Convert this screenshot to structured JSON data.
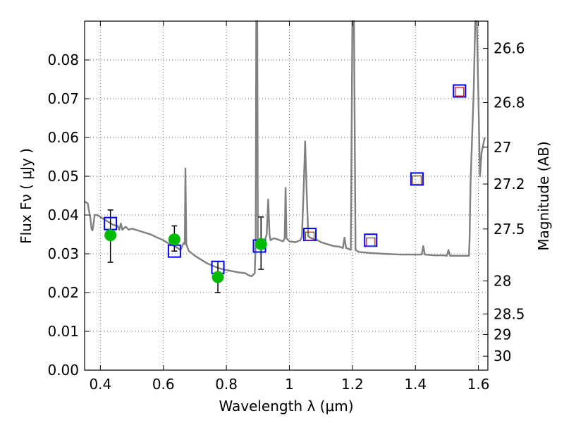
{
  "chart_data": {
    "type": "scatter",
    "xlabel": "Wavelength  λ (μm)",
    "ylabel": "Flux  Fν  ( μJy )",
    "ylabel_right": "Magnitude (AB)",
    "xlim": [
      0.35,
      1.63
    ],
    "ylim": [
      0.0,
      0.09
    ],
    "grid": true,
    "x_ticks": [
      0.4,
      0.6,
      0.8,
      1.0,
      1.2,
      1.4,
      1.6
    ],
    "x_tick_labels": [
      "0.4",
      "0.6",
      "0.8",
      "1",
      "1.2",
      "1.4",
      "1.6"
    ],
    "y_ticks": [
      0.0,
      0.01,
      0.02,
      0.03,
      0.04,
      0.05,
      0.06,
      0.07,
      0.08
    ],
    "y_tick_labels": [
      "0.00",
      "0.01",
      "0.02",
      "0.03",
      "0.04",
      "0.05",
      "0.06",
      "0.07",
      "0.08"
    ],
    "right_ticks": [
      {
        "label": "26.6",
        "flux": 0.083
      },
      {
        "label": "26.8",
        "flux": 0.069
      },
      {
        "label": "27",
        "flux": 0.0575
      },
      {
        "label": "27.2",
        "flux": 0.048
      },
      {
        "label": "27.5",
        "flux": 0.0364
      },
      {
        "label": "28",
        "flux": 0.023
      },
      {
        "label": "28.5",
        "flux": 0.0145
      },
      {
        "label": "29",
        "flux": 0.0092
      },
      {
        "label": "30",
        "flux": 0.0036
      }
    ],
    "series": [
      {
        "kind": "model-spectrum",
        "color": "#808080",
        "points": [
          [
            0.35,
            0.0435
          ],
          [
            0.36,
            0.043
          ],
          [
            0.363,
            0.0415
          ],
          [
            0.368,
            0.0395
          ],
          [
            0.372,
            0.0365
          ],
          [
            0.375,
            0.036
          ],
          [
            0.378,
            0.0375
          ],
          [
            0.382,
            0.04
          ],
          [
            0.39,
            0.04
          ],
          [
            0.4,
            0.0395
          ],
          [
            0.41,
            0.039
          ],
          [
            0.42,
            0.0385
          ],
          [
            0.43,
            0.038
          ],
          [
            0.44,
            0.0375
          ],
          [
            0.455,
            0.0372
          ],
          [
            0.46,
            0.0362
          ],
          [
            0.465,
            0.0378
          ],
          [
            0.47,
            0.0362
          ],
          [
            0.48,
            0.037
          ],
          [
            0.49,
            0.0362
          ],
          [
            0.5,
            0.0365
          ],
          [
            0.52,
            0.036
          ],
          [
            0.54,
            0.0355
          ],
          [
            0.56,
            0.035
          ],
          [
            0.58,
            0.0342
          ],
          [
            0.6,
            0.0335
          ],
          [
            0.62,
            0.0325
          ],
          [
            0.64,
            0.0318
          ],
          [
            0.65,
            0.0312
          ],
          [
            0.656,
            0.0312
          ],
          [
            0.66,
            0.032
          ],
          [
            0.664,
            0.0328
          ],
          [
            0.668,
            0.0325
          ],
          [
            0.67,
            0.052
          ],
          [
            0.673,
            0.0325
          ],
          [
            0.68,
            0.0308
          ],
          [
            0.7,
            0.0295
          ],
          [
            0.72,
            0.0285
          ],
          [
            0.74,
            0.0275
          ],
          [
            0.76,
            0.0268
          ],
          [
            0.78,
            0.0262
          ],
          [
            0.8,
            0.0258
          ],
          [
            0.82,
            0.0255
          ],
          [
            0.84,
            0.0252
          ],
          [
            0.86,
            0.025
          ],
          [
            0.87,
            0.0245
          ],
          [
            0.88,
            0.0242
          ],
          [
            0.89,
            0.025
          ],
          [
            0.893,
            0.033
          ],
          [
            0.895,
            0.09
          ],
          [
            0.898,
            0.09
          ],
          [
            0.9,
            0.033
          ],
          [
            0.905,
            0.032
          ],
          [
            0.915,
            0.0318
          ],
          [
            0.92,
            0.033
          ],
          [
            0.928,
            0.035
          ],
          [
            0.933,
            0.044
          ],
          [
            0.937,
            0.035
          ],
          [
            0.94,
            0.0335
          ],
          [
            0.95,
            0.034
          ],
          [
            0.96,
            0.0338
          ],
          [
            0.97,
            0.0335
          ],
          [
            0.98,
            0.0332
          ],
          [
            0.985,
            0.034
          ],
          [
            0.988,
            0.047
          ],
          [
            0.991,
            0.034
          ],
          [
            1.0,
            0.0332
          ],
          [
            1.02,
            0.033
          ],
          [
            1.035,
            0.0335
          ],
          [
            1.04,
            0.0345
          ],
          [
            1.045,
            0.046
          ],
          [
            1.05,
            0.059
          ],
          [
            1.055,
            0.046
          ],
          [
            1.06,
            0.0345
          ],
          [
            1.07,
            0.034
          ],
          [
            1.09,
            0.0335
          ],
          [
            1.1,
            0.033
          ],
          [
            1.12,
            0.0325
          ],
          [
            1.14,
            0.032
          ],
          [
            1.16,
            0.0318
          ],
          [
            1.17,
            0.0315
          ],
          [
            1.175,
            0.0342
          ],
          [
            1.18,
            0.0315
          ],
          [
            1.19,
            0.0312
          ],
          [
            1.195,
            0.031
          ],
          [
            1.2,
            0.09
          ],
          [
            1.205,
            0.09
          ],
          [
            1.21,
            0.031
          ],
          [
            1.22,
            0.0305
          ],
          [
            1.26,
            0.0302
          ],
          [
            1.3,
            0.03
          ],
          [
            1.35,
            0.0298
          ],
          [
            1.4,
            0.0298
          ],
          [
            1.42,
            0.0298
          ],
          [
            1.425,
            0.032
          ],
          [
            1.43,
            0.0298
          ],
          [
            1.46,
            0.0296
          ],
          [
            1.49,
            0.0296
          ],
          [
            1.5,
            0.0295
          ],
          [
            1.505,
            0.031
          ],
          [
            1.51,
            0.0295
          ],
          [
            1.52,
            0.0295
          ],
          [
            1.54,
            0.0295
          ],
          [
            1.56,
            0.0295
          ],
          [
            1.57,
            0.0295
          ],
          [
            1.572,
            0.034
          ],
          [
            1.575,
            0.048
          ],
          [
            1.585,
            0.072
          ],
          [
            1.59,
            0.09
          ],
          [
            1.595,
            0.09
          ],
          [
            1.6,
            0.07
          ],
          [
            1.605,
            0.05
          ],
          [
            1.61,
            0.056
          ],
          [
            1.62,
            0.06
          ]
        ]
      },
      {
        "kind": "observed-photometry",
        "color": "#00bb00",
        "points": [
          {
            "x": 0.432,
            "y": 0.0348,
            "err_low": 0.007,
            "err_high": 0.0065
          },
          {
            "x": 0.635,
            "y": 0.0337,
            "err_low": 0.003,
            "err_high": 0.0035
          },
          {
            "x": 0.773,
            "y": 0.024,
            "err_low": 0.004,
            "err_high": 0.004
          },
          {
            "x": 0.91,
            "y": 0.0325,
            "err_low": 0.0065,
            "err_high": 0.007
          }
        ]
      },
      {
        "kind": "model-synthetic-photometry",
        "color": "#0000ff",
        "points": [
          [
            0.432,
            0.0378
          ],
          [
            0.635,
            0.0307
          ],
          [
            0.773,
            0.0265
          ],
          [
            0.905,
            0.032
          ],
          [
            1.065,
            0.035
          ],
          [
            1.258,
            0.0335
          ],
          [
            1.405,
            0.0493
          ],
          [
            1.54,
            0.072
          ]
        ]
      },
      {
        "kind": "model-synthetic-photometry-inner",
        "color": "#ff0000",
        "points": [
          [
            1.065,
            0.0345
          ],
          [
            1.258,
            0.033
          ],
          [
            1.405,
            0.049
          ],
          [
            1.54,
            0.0718
          ]
        ]
      }
    ]
  }
}
